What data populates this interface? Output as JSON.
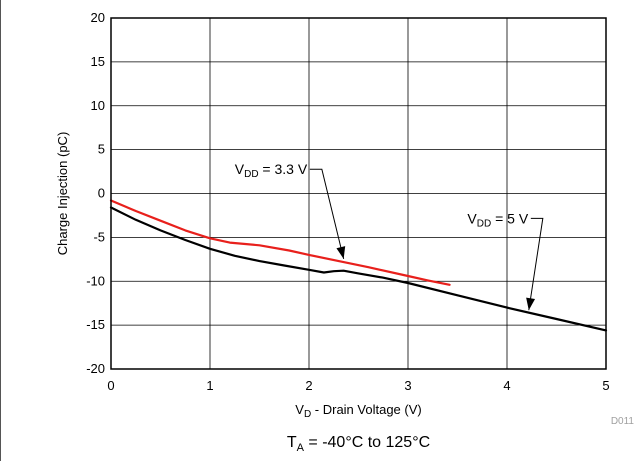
{
  "chart_data": {
    "type": "line",
    "xlabel": "V_D - Drain Voltage (V)",
    "ylabel": "Charge Injection (pC)",
    "xlim": [
      0,
      5
    ],
    "ylim": [
      -20,
      20
    ],
    "x_ticks": [
      "0",
      "1",
      "2",
      "3",
      "4",
      "5"
    ],
    "y_ticks": [
      "20",
      "15",
      "10",
      "5",
      "0",
      "-5",
      "-10",
      "-15",
      "-20"
    ],
    "grid": true,
    "series": [
      {
        "name": "V_DD = 3.3 V",
        "color": "#e8201c",
        "x": [
          0,
          0.25,
          0.5,
          0.75,
          1.0,
          1.2,
          1.5,
          1.8,
          2.0,
          2.3,
          2.6,
          3.0,
          3.2,
          3.42
        ],
        "y": [
          -0.8,
          -2.0,
          -3.1,
          -4.2,
          -5.1,
          -5.6,
          -5.9,
          -6.5,
          -7.0,
          -7.7,
          -8.4,
          -9.4,
          -9.9,
          -10.4
        ]
      },
      {
        "name": "V_DD = 5 V",
        "color": "#000000",
        "x": [
          0,
          0.25,
          0.5,
          0.75,
          1.0,
          1.25,
          1.5,
          1.75,
          2.0,
          2.15,
          2.25,
          2.35,
          2.5,
          2.75,
          3.0,
          3.5,
          4.0,
          4.5,
          5.0
        ],
        "y": [
          -1.6,
          -3.0,
          -4.2,
          -5.3,
          -6.3,
          -7.1,
          -7.7,
          -8.2,
          -8.7,
          -9.0,
          -8.85,
          -8.8,
          -9.1,
          -9.6,
          -10.2,
          -11.6,
          -13.0,
          -14.3,
          -15.6
        ]
      }
    ],
    "annotations": [
      {
        "name": "label-3v3",
        "main": "V",
        "sub": "DD",
        "rest": " = 3.3 V",
        "x": 1.25,
        "y": 2.2,
        "arrow_to": [
          2.35,
          -7.45
        ]
      },
      {
        "name": "label-5v",
        "main": "V",
        "sub": "DD",
        "rest": " = 5 V",
        "x": 3.6,
        "y": -3.4,
        "arrow_to": [
          4.22,
          -13.3
        ]
      }
    ],
    "x_title": {
      "main": "V",
      "sub": "D",
      "rest": " - Drain Voltage (V)"
    },
    "y_title": "Charge Injection (pC)",
    "figure_id": "D011",
    "condition": {
      "main": "T",
      "sub": "A",
      "rest": " = -40°C to 125°C"
    }
  }
}
